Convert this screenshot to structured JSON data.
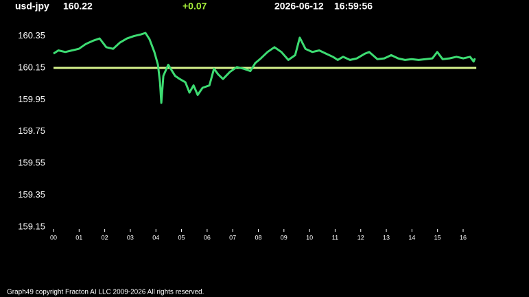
{
  "header": {
    "symbol": "usd-jpy",
    "price": "160.22",
    "change": "+0.07",
    "date": "2026-06-12",
    "time": "16:59:56"
  },
  "footer": "Graph49 copyright Fracton AI LLC 2009-2026 All rights reserved.",
  "chart_data": {
    "type": "line",
    "x": [
      0,
      0.19,
      0.46,
      0.72,
      0.99,
      1.26,
      1.53,
      1.8,
      2.06,
      2.33,
      2.6,
      2.87,
      3.14,
      3.4,
      3.59,
      3.75,
      3.94,
      4.08,
      4.16,
      4.21,
      4.29,
      4.48,
      4.75,
      4.93,
      5.15,
      5.31,
      5.47,
      5.63,
      5.82,
      6.09,
      6.27,
      6.43,
      6.62,
      6.89,
      7.16,
      7.43,
      7.69,
      7.88,
      8.1,
      8.36,
      8.63,
      8.9,
      9.17,
      9.44,
      9.62,
      9.84,
      10.11,
      10.38,
      10.64,
      10.91,
      11.1,
      11.31,
      11.58,
      11.85,
      12.17,
      12.33,
      12.65,
      12.92,
      13.19,
      13.46,
      13.73,
      13.99,
      14.26,
      14.53,
      14.8,
      14.99,
      15.2,
      15.47,
      15.74,
      16.01,
      16.27,
      16.41,
      16.46
    ],
    "series": [
      {
        "color": "#3ddc72",
        "values": [
          160.24,
          160.26,
          160.25,
          160.26,
          160.27,
          160.3,
          160.32,
          160.335,
          160.28,
          160.27,
          160.31,
          160.335,
          160.35,
          160.36,
          160.37,
          160.33,
          160.25,
          160.17,
          160.06,
          159.93,
          160.1,
          160.17,
          160.1,
          160.08,
          160.06,
          159.995,
          160.04,
          159.98,
          160.025,
          160.04,
          160.145,
          160.11,
          160.08,
          160.125,
          160.155,
          160.145,
          160.13,
          160.18,
          160.21,
          160.25,
          160.28,
          160.25,
          160.2,
          160.23,
          160.34,
          160.27,
          160.25,
          160.26,
          160.24,
          160.22,
          160.2,
          160.22,
          160.2,
          160.21,
          160.24,
          160.25,
          160.205,
          160.21,
          160.23,
          160.21,
          160.2,
          160.205,
          160.2,
          160.205,
          160.21,
          160.25,
          160.205,
          160.21,
          160.22,
          160.21,
          160.22,
          160.19,
          160.21
        ]
      }
    ],
    "reference_line": {
      "value": 160.15,
      "color": "#d6f28c"
    },
    "xlim": [
      0,
      16
    ],
    "xticks": [
      {
        "value": 0,
        "label": "00"
      },
      {
        "value": 1,
        "label": "01"
      },
      {
        "value": 2,
        "label": "02"
      },
      {
        "value": 3,
        "label": "03"
      },
      {
        "value": 4,
        "label": "04"
      },
      {
        "value": 5,
        "label": "05"
      },
      {
        "value": 6,
        "label": "06"
      },
      {
        "value": 7,
        "label": "07"
      },
      {
        "value": 8,
        "label": "08"
      },
      {
        "value": 9,
        "label": "09"
      },
      10,
      11,
      12,
      13,
      14,
      15,
      16
    ],
    "ylim": [
      159.15,
      160.4
    ],
    "yticks": [
      160.35,
      160.15,
      159.95,
      159.75,
      159.55,
      159.35,
      159.15
    ]
  }
}
